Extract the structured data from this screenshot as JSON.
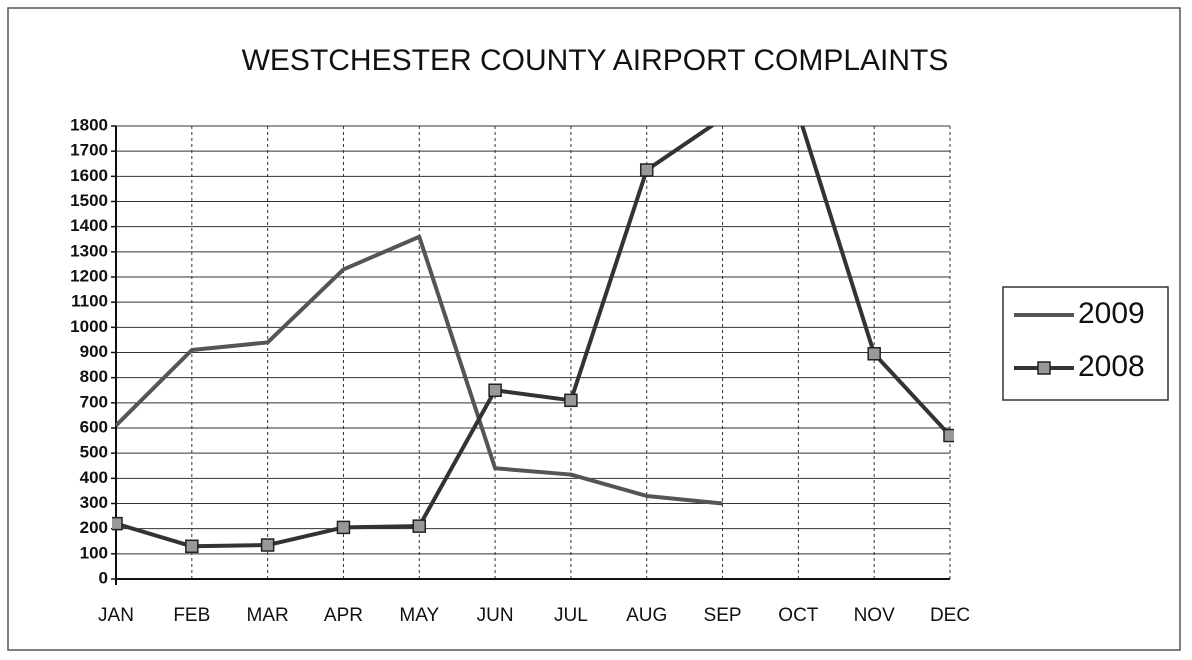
{
  "chart_data": {
    "type": "line",
    "title": "WESTCHESTER COUNTY AIRPORT COMPLAINTS",
    "categories": [
      "JAN",
      "FEB",
      "MAR",
      "APR",
      "MAY",
      "JUN",
      "JUL",
      "AUG",
      "SEP",
      "OCT",
      "NOV",
      "DEC"
    ],
    "series": [
      {
        "name": "2009",
        "color": "#555555",
        "marker": "none",
        "values": [
          610,
          910,
          940,
          1230,
          1360,
          440,
          415,
          330,
          300,
          null,
          null,
          null
        ]
      },
      {
        "name": "2008",
        "color": "#333333",
        "marker": "square",
        "values": [
          220,
          130,
          135,
          205,
          210,
          750,
          710,
          1625,
          1830,
          1850,
          895,
          570
        ]
      }
    ],
    "ylim": [
      0,
      1800
    ],
    "yticks": [
      0,
      100,
      200,
      300,
      400,
      500,
      600,
      700,
      800,
      900,
      1000,
      1100,
      1200,
      1300,
      1400,
      1500,
      1600,
      1700,
      1800
    ],
    "grid": true,
    "legend": "right"
  }
}
